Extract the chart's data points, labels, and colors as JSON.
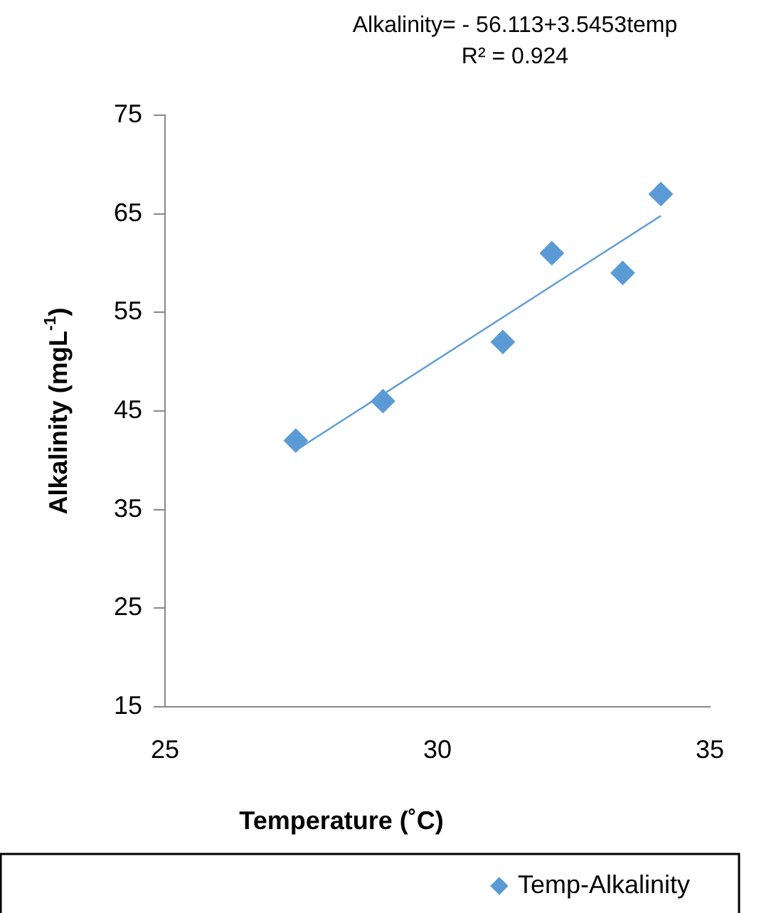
{
  "chart_data": {
    "type": "scatter",
    "xlabel": "Temperature (˚C)",
    "ylabel": "Alkalinity (mgL$^{-1}$)",
    "annotations": [
      "Alkalinity= - 56.113+3.5453temp",
      "R² = 0.924"
    ],
    "xlim": [
      25,
      35
    ],
    "xticks": [
      25,
      30,
      35
    ],
    "ylim": [
      15,
      75
    ],
    "yticks": [
      15,
      25,
      35,
      45,
      55,
      65,
      75
    ],
    "grid": false,
    "legend": "bottom right",
    "marker": "diamond",
    "series": [
      {
        "name": "Temp-Alkalinity",
        "color": "#5b9bd5",
        "x": [
          27.4,
          29.0,
          31.2,
          32.1,
          33.4,
          34.1
        ],
        "values": [
          42,
          46,
          52,
          61,
          59,
          67
        ]
      },
      {
        "type": "line",
        "color": "#5b9bd5",
        "marker": "none",
        "x": [
          27.4,
          34.1
        ],
        "values": [
          41.0,
          64.8
        ]
      }
    ]
  }
}
